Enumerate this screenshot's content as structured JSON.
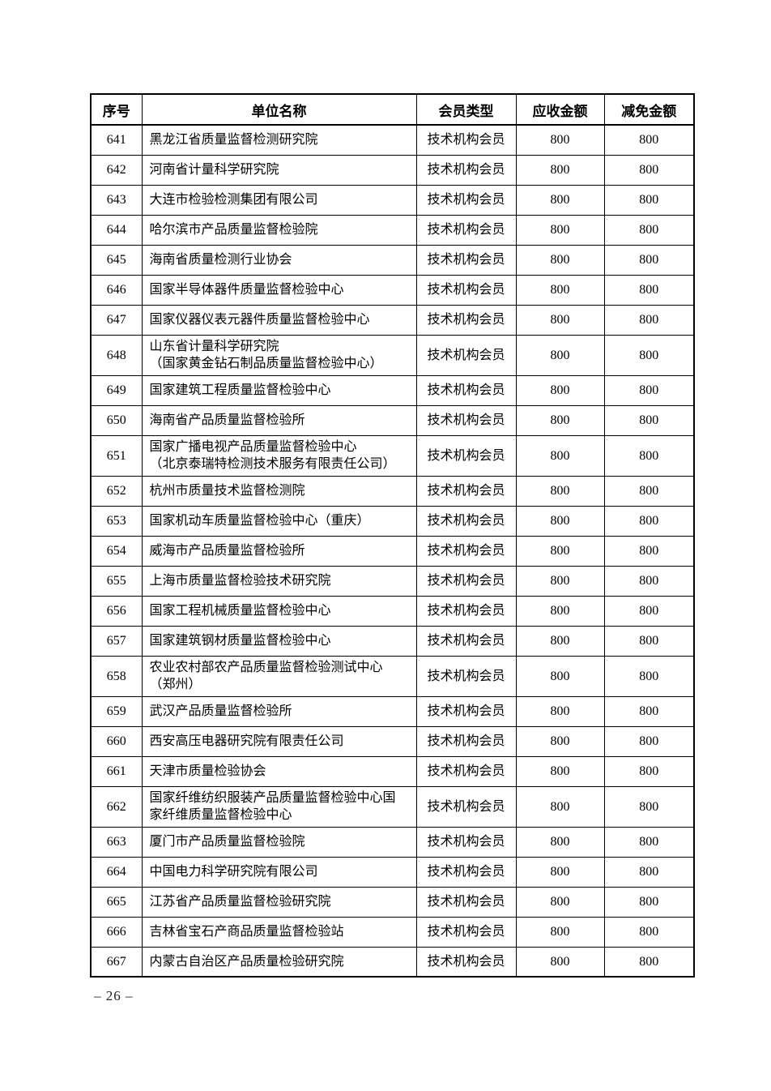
{
  "page": {
    "footer_page_number": "– 26 –"
  },
  "table": {
    "headers": [
      "序号",
      "单位名称",
      "会员类型",
      "应收金额",
      "减免金额"
    ],
    "rows": [
      {
        "no": "641",
        "name": "黑龙江省质量监督检测研究院",
        "type": "技术机构会员",
        "due": "800",
        "waived": "800"
      },
      {
        "no": "642",
        "name": "河南省计量科学研究院",
        "type": "技术机构会员",
        "due": "800",
        "waived": "800"
      },
      {
        "no": "643",
        "name": "大连市检验检测集团有限公司",
        "type": "技术机构会员",
        "due": "800",
        "waived": "800"
      },
      {
        "no": "644",
        "name": "哈尔滨市产品质量监督检验院",
        "type": "技术机构会员",
        "due": "800",
        "waived": "800"
      },
      {
        "no": "645",
        "name": "海南省质量检测行业协会",
        "type": "技术机构会员",
        "due": "800",
        "waived": "800"
      },
      {
        "no": "646",
        "name": "国家半导体器件质量监督检验中心",
        "type": "技术机构会员",
        "due": "800",
        "waived": "800"
      },
      {
        "no": "647",
        "name": "国家仪器仪表元器件质量监督检验中心",
        "type": "技术机构会员",
        "due": "800",
        "waived": "800"
      },
      {
        "no": "648",
        "name": "山东省计量科学研究院\n（国家黄金钻石制品质量监督检验中心）",
        "type": "技术机构会员",
        "due": "800",
        "waived": "800"
      },
      {
        "no": "649",
        "name": "国家建筑工程质量监督检验中心",
        "type": "技术机构会员",
        "due": "800",
        "waived": "800"
      },
      {
        "no": "650",
        "name": "海南省产品质量监督检验所",
        "type": "技术机构会员",
        "due": "800",
        "waived": "800"
      },
      {
        "no": "651",
        "name": "国家广播电视产品质量监督检验中心\n（北京泰瑞特检测技术服务有限责任公司）",
        "type": "技术机构会员",
        "due": "800",
        "waived": "800"
      },
      {
        "no": "652",
        "name": "杭州市质量技术监督检测院",
        "type": "技术机构会员",
        "due": "800",
        "waived": "800"
      },
      {
        "no": "653",
        "name": "国家机动车质量监督检验中心（重庆）",
        "type": "技术机构会员",
        "due": "800",
        "waived": "800"
      },
      {
        "no": "654",
        "name": "威海市产品质量监督检验所",
        "type": "技术机构会员",
        "due": "800",
        "waived": "800"
      },
      {
        "no": "655",
        "name": "上海市质量监督检验技术研究院",
        "type": "技术机构会员",
        "due": "800",
        "waived": "800"
      },
      {
        "no": "656",
        "name": "国家工程机械质量监督检验中心",
        "type": "技术机构会员",
        "due": "800",
        "waived": "800"
      },
      {
        "no": "657",
        "name": "国家建筑钢材质量监督检验中心",
        "type": "技术机构会员",
        "due": "800",
        "waived": "800"
      },
      {
        "no": "658",
        "name": "农业农村部农产品质量监督检验测试中心\n（郑州）",
        "type": "技术机构会员",
        "due": "800",
        "waived": "800"
      },
      {
        "no": "659",
        "name": "武汉产品质量监督检验所",
        "type": "技术机构会员",
        "due": "800",
        "waived": "800"
      },
      {
        "no": "660",
        "name": "西安高压电器研究院有限责任公司",
        "type": "技术机构会员",
        "due": "800",
        "waived": "800"
      },
      {
        "no": "661",
        "name": "天津市质量检验协会",
        "type": "技术机构会员",
        "due": "800",
        "waived": "800"
      },
      {
        "no": "662",
        "name": "国家纤维纺织服装产品质量监督检验中心国\n家纤维质量监督检验中心",
        "type": "技术机构会员",
        "due": "800",
        "waived": "800"
      },
      {
        "no": "663",
        "name": "厦门市产品质量监督检验院",
        "type": "技术机构会员",
        "due": "800",
        "waived": "800"
      },
      {
        "no": "664",
        "name": "中国电力科学研究院有限公司",
        "type": "技术机构会员",
        "due": "800",
        "waived": "800"
      },
      {
        "no": "665",
        "name": "江苏省产品质量监督检验研究院",
        "type": "技术机构会员",
        "due": "800",
        "waived": "800"
      },
      {
        "no": "666",
        "name": "吉林省宝石产商品质量监督检验站",
        "type": "技术机构会员",
        "due": "800",
        "waived": "800"
      },
      {
        "no": "667",
        "name": "内蒙古自治区产品质量检验研究院",
        "type": "技术机构会员",
        "due": "800",
        "waived": "800"
      }
    ]
  }
}
